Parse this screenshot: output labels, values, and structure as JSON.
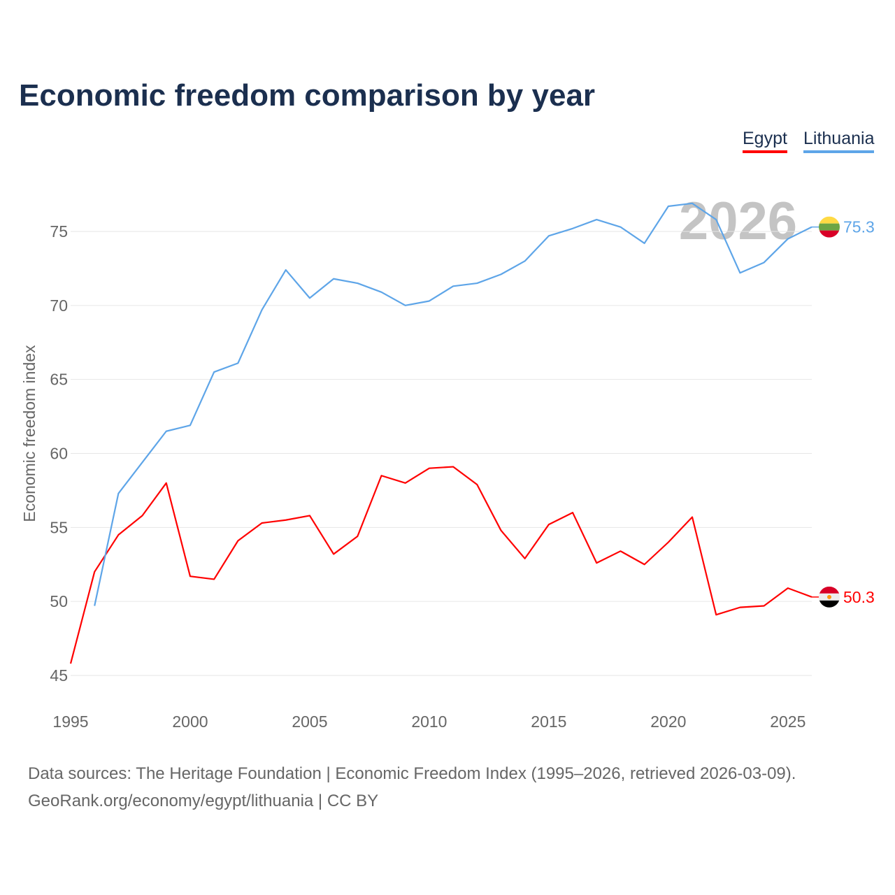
{
  "chart_data": {
    "type": "line",
    "title": "Economic freedom comparison by year",
    "xlabel": "",
    "ylabel": "Economic freedom index",
    "xlim": [
      1995,
      2026
    ],
    "ylim": [
      45,
      77.5
    ],
    "xticks": [
      1995,
      2000,
      2005,
      2010,
      2015,
      2020,
      2025
    ],
    "yticks": [
      45,
      50,
      55,
      60,
      65,
      70,
      75
    ],
    "grid": true,
    "legend_position": "top-right",
    "watermark_year": "2026",
    "series": [
      {
        "name": "Egypt",
        "color": "#ff0000",
        "end_label": "50.3",
        "x": [
          1995,
          1996,
          1997,
          1998,
          1999,
          2000,
          2001,
          2002,
          2003,
          2004,
          2005,
          2006,
          2007,
          2008,
          2009,
          2010,
          2011,
          2012,
          2013,
          2014,
          2015,
          2016,
          2017,
          2018,
          2019,
          2020,
          2021,
          2022,
          2023,
          2024,
          2025,
          2026
        ],
        "values": [
          45.8,
          52.0,
          54.5,
          55.8,
          58.0,
          51.7,
          51.5,
          54.1,
          55.3,
          55.5,
          55.8,
          53.2,
          54.4,
          58.5,
          58.0,
          59.0,
          59.1,
          57.9,
          54.8,
          52.9,
          55.2,
          56.0,
          52.6,
          53.4,
          52.5,
          54.0,
          55.7,
          49.1,
          49.6,
          49.7,
          50.9,
          50.3
        ]
      },
      {
        "name": "Lithuania",
        "color": "#5ea5e8",
        "end_label": "75.3",
        "x": [
          1996,
          1997,
          1998,
          1999,
          2000,
          2001,
          2002,
          2003,
          2004,
          2005,
          2006,
          2007,
          2008,
          2009,
          2010,
          2011,
          2012,
          2013,
          2014,
          2015,
          2016,
          2017,
          2018,
          2019,
          2020,
          2021,
          2022,
          2023,
          2024,
          2025,
          2026
        ],
        "values": [
          49.7,
          57.3,
          59.4,
          61.5,
          61.9,
          65.5,
          66.1,
          69.7,
          72.4,
          70.5,
          71.8,
          71.5,
          70.9,
          70.0,
          70.3,
          71.3,
          71.5,
          72.1,
          73.0,
          74.7,
          75.2,
          75.8,
          75.3,
          74.2,
          76.7,
          76.9,
          75.8,
          72.2,
          72.9,
          74.5,
          75.3
        ]
      }
    ]
  },
  "footer": {
    "line1": "Data sources: The Heritage Foundation | Economic Freedom Index (1995–2026, retrieved 2026-03-09).",
    "line2": "GeoRank.org/economy/egypt/lithuania | CC BY"
  }
}
